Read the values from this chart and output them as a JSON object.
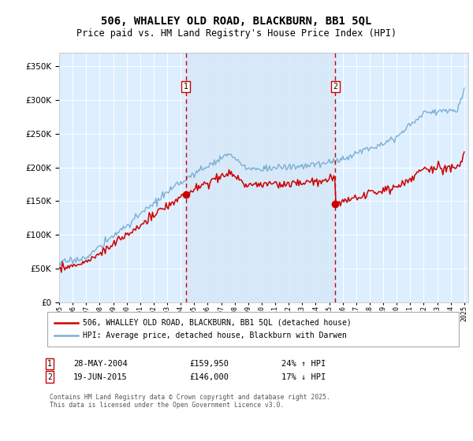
{
  "title": "506, WHALLEY OLD ROAD, BLACKBURN, BB1 5QL",
  "subtitle": "Price paid vs. HM Land Registry's House Price Index (HPI)",
  "ylim": [
    0,
    370000
  ],
  "yticks": [
    0,
    50000,
    100000,
    150000,
    200000,
    250000,
    300000,
    350000
  ],
  "sale1_year": 2004.38,
  "sale1_price": 159950,
  "sale2_year": 2015.46,
  "sale2_price": 146000,
  "line_color_red": "#cc0000",
  "line_color_blue": "#7bafd4",
  "shade_color": "#d6e8f7",
  "background_color": "#ddeeff",
  "legend_label_red": "506, WHALLEY OLD ROAD, BLACKBURN, BB1 5QL (detached house)",
  "legend_label_blue": "HPI: Average price, detached house, Blackburn with Darwen",
  "footer": "Contains HM Land Registry data © Crown copyright and database right 2025.\nThis data is licensed under the Open Government Licence v3.0."
}
